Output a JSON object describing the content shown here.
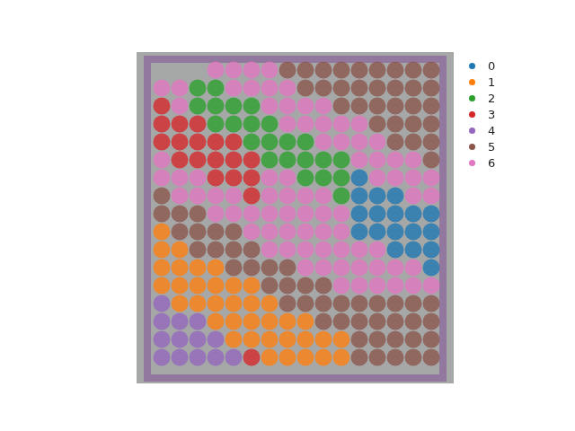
{
  "chart_data": {
    "type": "scatter",
    "xlim": [
      152,
      505
    ],
    "ylim": [
      53,
      422
    ],
    "tick_labels": false,
    "grid": false,
    "legend": "right",
    "marker": "o",
    "series": [
      {
        "name": "0",
        "color": "#1f77b4",
        "values": [
          [
            400,
            282
          ],
          [
            400,
            262
          ],
          [
            420,
            262
          ],
          [
            440,
            262
          ],
          [
            400,
            242
          ],
          [
            420,
            242
          ],
          [
            440,
            242
          ],
          [
            460,
            242
          ],
          [
            480,
            242
          ],
          [
            400,
            222
          ],
          [
            420,
            222
          ],
          [
            440,
            222
          ],
          [
            460,
            222
          ],
          [
            480,
            222
          ],
          [
            440,
            202
          ],
          [
            460,
            202
          ],
          [
            480,
            202
          ],
          [
            480,
            182
          ]
        ]
      },
      {
        "name": "1",
        "color": "#ff7f0e",
        "values": [
          [
            180,
            222
          ],
          [
            180,
            202
          ],
          [
            200,
            202
          ],
          [
            180,
            182
          ],
          [
            200,
            182
          ],
          [
            220,
            182
          ],
          [
            240,
            182
          ],
          [
            180,
            162
          ],
          [
            200,
            162
          ],
          [
            220,
            162
          ],
          [
            240,
            162
          ],
          [
            260,
            162
          ],
          [
            280,
            162
          ],
          [
            200,
            142
          ],
          [
            220,
            142
          ],
          [
            240,
            142
          ],
          [
            260,
            142
          ],
          [
            280,
            142
          ],
          [
            300,
            142
          ],
          [
            240,
            122
          ],
          [
            260,
            122
          ],
          [
            280,
            122
          ],
          [
            300,
            122
          ],
          [
            320,
            122
          ],
          [
            340,
            122
          ],
          [
            260,
            102
          ],
          [
            280,
            102
          ],
          [
            300,
            102
          ],
          [
            320,
            102
          ],
          [
            340,
            102
          ],
          [
            360,
            102
          ],
          [
            380,
            102
          ],
          [
            300,
            82
          ],
          [
            320,
            82
          ],
          [
            340,
            82
          ],
          [
            360,
            82
          ],
          [
            380,
            82
          ]
        ]
      },
      {
        "name": "2",
        "color": "#2ca02c",
        "values": [
          [
            220,
            382
          ],
          [
            240,
            382
          ],
          [
            220,
            362
          ],
          [
            240,
            362
          ],
          [
            260,
            362
          ],
          [
            280,
            362
          ],
          [
            240,
            342
          ],
          [
            260,
            342
          ],
          [
            280,
            342
          ],
          [
            300,
            342
          ],
          [
            280,
            322
          ],
          [
            300,
            322
          ],
          [
            320,
            322
          ],
          [
            340,
            322
          ],
          [
            300,
            302
          ],
          [
            320,
            302
          ],
          [
            340,
            302
          ],
          [
            360,
            302
          ],
          [
            380,
            302
          ],
          [
            340,
            282
          ],
          [
            360,
            282
          ],
          [
            380,
            282
          ],
          [
            380,
            262
          ]
        ]
      },
      {
        "name": "3",
        "color": "#d62728",
        "values": [
          [
            180,
            362
          ],
          [
            180,
            342
          ],
          [
            200,
            342
          ],
          [
            220,
            342
          ],
          [
            180,
            322
          ],
          [
            200,
            322
          ],
          [
            220,
            322
          ],
          [
            240,
            322
          ],
          [
            260,
            322
          ],
          [
            200,
            302
          ],
          [
            220,
            302
          ],
          [
            240,
            302
          ],
          [
            260,
            302
          ],
          [
            280,
            302
          ],
          [
            240,
            282
          ],
          [
            260,
            282
          ],
          [
            280,
            282
          ],
          [
            280,
            262
          ],
          [
            280,
            82
          ]
        ]
      },
      {
        "name": "4",
        "color": "#9467bd",
        "values": [
          [
            180,
            142
          ],
          [
            180,
            122
          ],
          [
            200,
            122
          ],
          [
            220,
            122
          ],
          [
            180,
            102
          ],
          [
            200,
            102
          ],
          [
            220,
            102
          ],
          [
            240,
            102
          ],
          [
            180,
            82
          ],
          [
            200,
            82
          ],
          [
            220,
            82
          ],
          [
            240,
            82
          ],
          [
            260,
            82
          ]
        ]
      },
      {
        "name": "5",
        "color": "#8c564b",
        "values": [
          [
            320,
            402
          ],
          [
            340,
            402
          ],
          [
            360,
            402
          ],
          [
            380,
            402
          ],
          [
            400,
            402
          ],
          [
            420,
            402
          ],
          [
            440,
            402
          ],
          [
            460,
            402
          ],
          [
            480,
            402
          ],
          [
            340,
            382
          ],
          [
            360,
            382
          ],
          [
            380,
            382
          ],
          [
            400,
            382
          ],
          [
            420,
            382
          ],
          [
            440,
            382
          ],
          [
            460,
            382
          ],
          [
            480,
            382
          ],
          [
            380,
            362
          ],
          [
            400,
            362
          ],
          [
            420,
            362
          ],
          [
            440,
            362
          ],
          [
            460,
            362
          ],
          [
            480,
            362
          ],
          [
            420,
            342
          ],
          [
            440,
            342
          ],
          [
            460,
            342
          ],
          [
            480,
            342
          ],
          [
            440,
            322
          ],
          [
            460,
            322
          ],
          [
            480,
            322
          ],
          [
            480,
            302
          ],
          [
            180,
            262
          ],
          [
            180,
            242
          ],
          [
            200,
            242
          ],
          [
            220,
            242
          ],
          [
            200,
            222
          ],
          [
            220,
            222
          ],
          [
            240,
            222
          ],
          [
            260,
            222
          ],
          [
            220,
            202
          ],
          [
            240,
            202
          ],
          [
            260,
            202
          ],
          [
            280,
            202
          ],
          [
            260,
            182
          ],
          [
            280,
            182
          ],
          [
            300,
            182
          ],
          [
            320,
            182
          ],
          [
            300,
            162
          ],
          [
            320,
            162
          ],
          [
            340,
            162
          ],
          [
            360,
            162
          ],
          [
            320,
            142
          ],
          [
            340,
            142
          ],
          [
            360,
            142
          ],
          [
            380,
            142
          ],
          [
            400,
            142
          ],
          [
            420,
            142
          ],
          [
            440,
            142
          ],
          [
            460,
            142
          ],
          [
            480,
            142
          ],
          [
            360,
            122
          ],
          [
            380,
            122
          ],
          [
            400,
            122
          ],
          [
            420,
            122
          ],
          [
            440,
            122
          ],
          [
            460,
            122
          ],
          [
            480,
            122
          ],
          [
            400,
            102
          ],
          [
            420,
            102
          ],
          [
            440,
            102
          ],
          [
            460,
            102
          ],
          [
            480,
            102
          ],
          [
            400,
            82
          ],
          [
            420,
            82
          ],
          [
            440,
            82
          ],
          [
            460,
            82
          ],
          [
            480,
            82
          ]
        ]
      },
      {
        "name": "6",
        "color": "#e377c2",
        "values": [
          [
            240,
            402
          ],
          [
            260,
            402
          ],
          [
            280,
            402
          ],
          [
            300,
            402
          ],
          [
            180,
            382
          ],
          [
            200,
            382
          ],
          [
            260,
            382
          ],
          [
            280,
            382
          ],
          [
            300,
            382
          ],
          [
            320,
            382
          ],
          [
            200,
            362
          ],
          [
            300,
            362
          ],
          [
            320,
            362
          ],
          [
            340,
            362
          ],
          [
            360,
            362
          ],
          [
            320,
            342
          ],
          [
            340,
            342
          ],
          [
            360,
            342
          ],
          [
            380,
            342
          ],
          [
            400,
            342
          ],
          [
            360,
            322
          ],
          [
            380,
            322
          ],
          [
            400,
            322
          ],
          [
            420,
            322
          ],
          [
            180,
            302
          ],
          [
            400,
            302
          ],
          [
            420,
            302
          ],
          [
            440,
            302
          ],
          [
            460,
            302
          ],
          [
            180,
            282
          ],
          [
            200,
            282
          ],
          [
            220,
            282
          ],
          [
            300,
            282
          ],
          [
            320,
            282
          ],
          [
            420,
            282
          ],
          [
            440,
            282
          ],
          [
            460,
            282
          ],
          [
            480,
            282
          ],
          [
            200,
            262
          ],
          [
            220,
            262
          ],
          [
            240,
            262
          ],
          [
            260,
            262
          ],
          [
            300,
            262
          ],
          [
            320,
            262
          ],
          [
            340,
            262
          ],
          [
            360,
            262
          ],
          [
            460,
            262
          ],
          [
            480,
            262
          ],
          [
            240,
            242
          ],
          [
            260,
            242
          ],
          [
            280,
            242
          ],
          [
            300,
            242
          ],
          [
            320,
            242
          ],
          [
            340,
            242
          ],
          [
            360,
            242
          ],
          [
            380,
            242
          ],
          [
            280,
            222
          ],
          [
            300,
            222
          ],
          [
            320,
            222
          ],
          [
            340,
            222
          ],
          [
            360,
            222
          ],
          [
            380,
            222
          ],
          [
            300,
            202
          ],
          [
            320,
            202
          ],
          [
            340,
            202
          ],
          [
            360,
            202
          ],
          [
            380,
            202
          ],
          [
            400,
            202
          ],
          [
            420,
            202
          ],
          [
            340,
            182
          ],
          [
            360,
            182
          ],
          [
            380,
            182
          ],
          [
            400,
            182
          ],
          [
            420,
            182
          ],
          [
            440,
            182
          ],
          [
            460,
            182
          ],
          [
            380,
            162
          ],
          [
            400,
            162
          ],
          [
            420,
            162
          ],
          [
            440,
            162
          ],
          [
            460,
            162
          ],
          [
            480,
            162
          ]
        ]
      }
    ]
  }
}
